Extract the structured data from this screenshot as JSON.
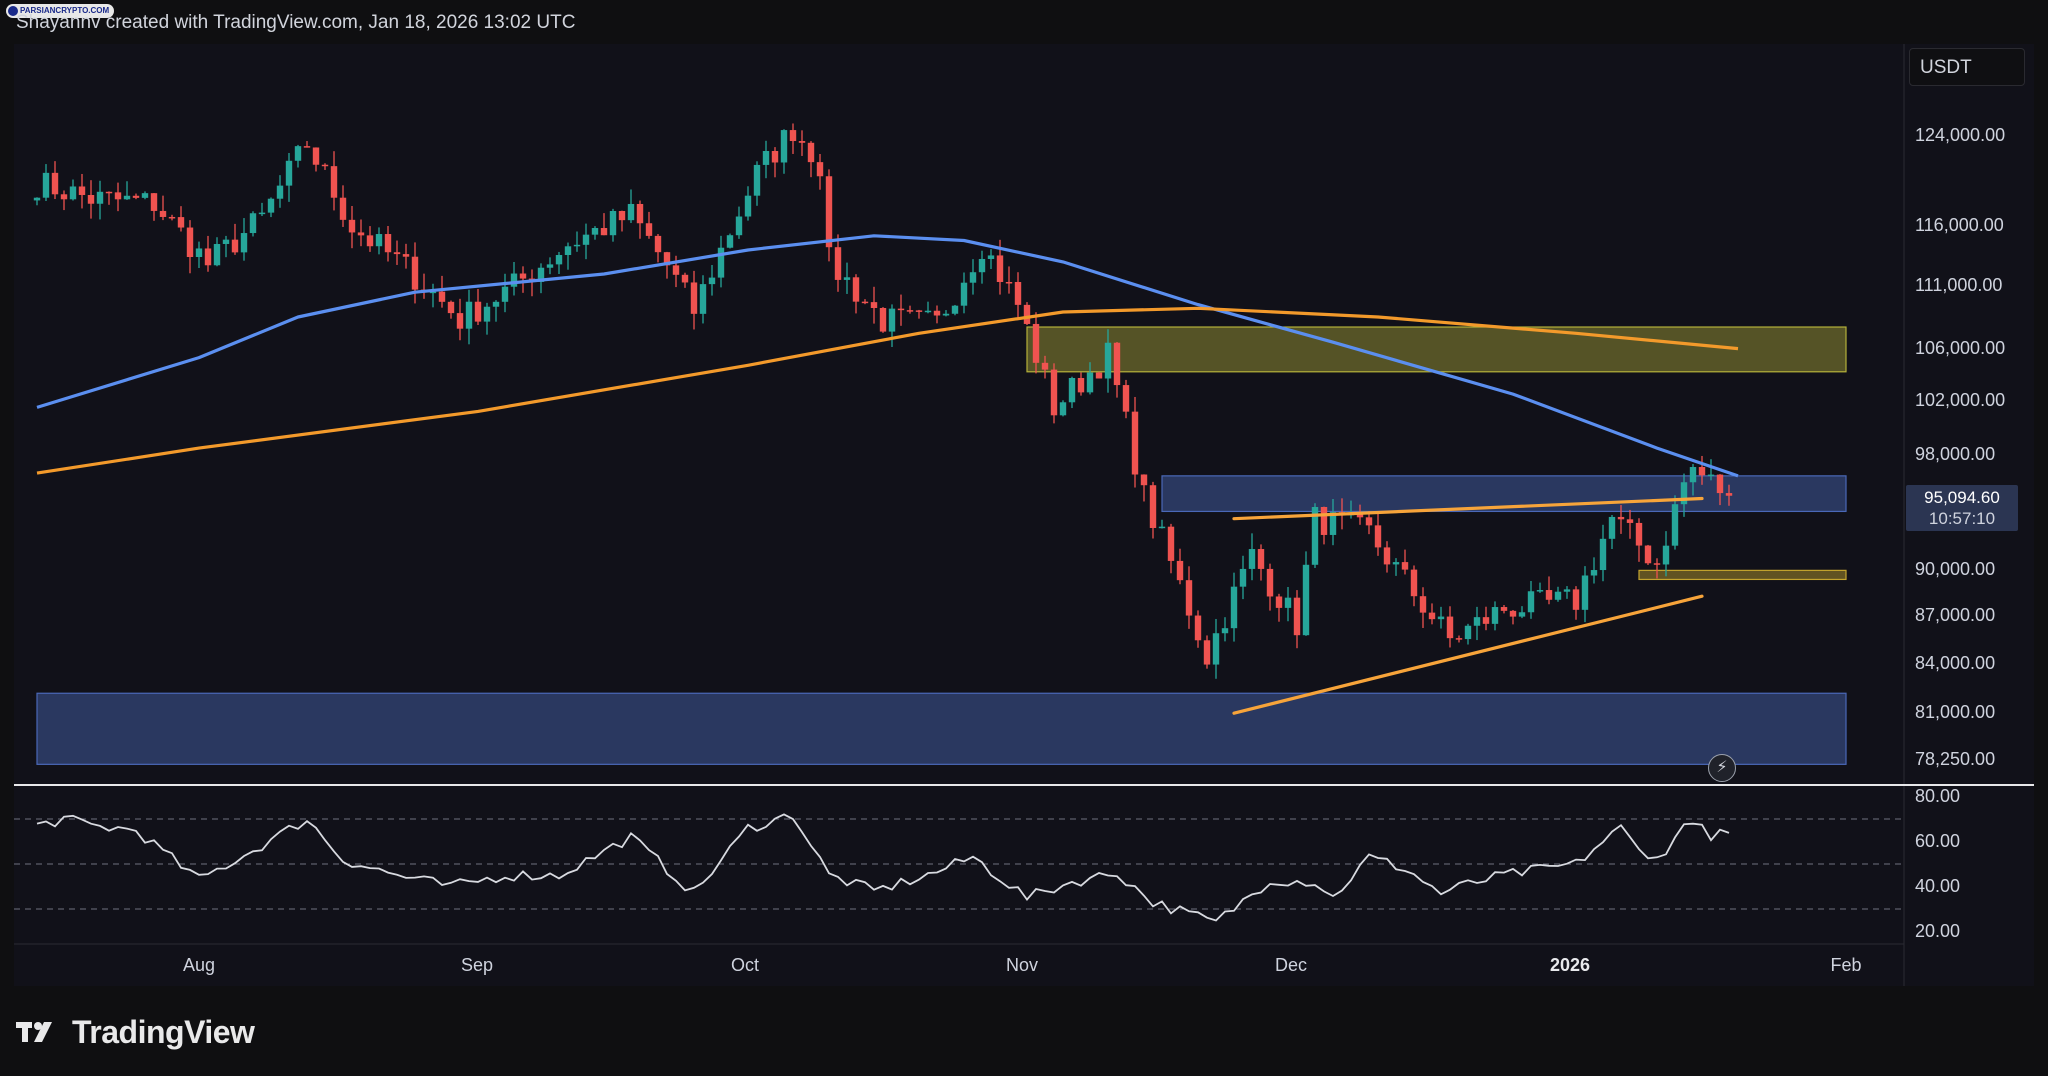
{
  "header": {
    "logo_text": "PARSIANCRYPTO.COM",
    "caption": "Shayannv created with TradingView.com, Jan 18, 2026 13:02 UTC"
  },
  "currency": "USDT",
  "price_tag": {
    "price": "95,094.60",
    "countdown": "10:57:10"
  },
  "footer": {
    "brand": "TradingView"
  },
  "chart_data": [
    {
      "type": "candlestick",
      "title": "",
      "x_labels": [
        "Aug",
        "Sep",
        "Oct",
        "Nov",
        "Dec",
        "2026",
        "Feb"
      ],
      "y_labels": [
        "124,000.00",
        "116,000.00",
        "111,000.00",
        "106,000.00",
        "102,000.00",
        "98,000.00",
        "90,000.00",
        "87,000.00",
        "84,000.00",
        "81,000.00",
        "78,250.00"
      ],
      "y_scale": "log",
      "ylim": [
        76500,
        130000
      ],
      "last_price": 95094.6,
      "close_path": [
        {
          "date": "2025-07-14",
          "close": 119800
        },
        {
          "date": "2025-07-20",
          "close": 118400
        },
        {
          "date": "2025-07-27",
          "close": 118000
        },
        {
          "date": "2025-08-02",
          "close": 112800
        },
        {
          "date": "2025-08-08",
          "close": 116700
        },
        {
          "date": "2025-08-13",
          "close": 123300
        },
        {
          "date": "2025-08-18",
          "close": 116000
        },
        {
          "date": "2025-08-24",
          "close": 112500
        },
        {
          "date": "2025-08-30",
          "close": 108300
        },
        {
          "date": "2025-09-05",
          "close": 111000
        },
        {
          "date": "2025-09-11",
          "close": 114500
        },
        {
          "date": "2025-09-18",
          "close": 117000
        },
        {
          "date": "2025-09-22",
          "close": 112700
        },
        {
          "date": "2025-09-25",
          "close": 109000
        },
        {
          "date": "2025-10-02",
          "close": 120600
        },
        {
          "date": "2025-10-06",
          "close": 124700
        },
        {
          "date": "2025-10-09",
          "close": 121500
        },
        {
          "date": "2025-10-10",
          "close": 113000
        },
        {
          "date": "2025-10-16",
          "close": 108200
        },
        {
          "date": "2025-10-22",
          "close": 108000
        },
        {
          "date": "2025-10-27",
          "close": 114500
        },
        {
          "date": "2025-10-31",
          "close": 109500
        },
        {
          "date": "2025-11-04",
          "close": 101500
        },
        {
          "date": "2025-11-10",
          "close": 105500
        },
        {
          "date": "2025-11-14",
          "close": 95000
        },
        {
          "date": "2025-11-21",
          "close": 84500
        },
        {
          "date": "2025-11-26",
          "close": 91000
        },
        {
          "date": "2025-12-01",
          "close": 86500
        },
        {
          "date": "2025-12-03",
          "close": 93500
        },
        {
          "date": "2025-12-09",
          "close": 92500
        },
        {
          "date": "2025-12-14",
          "close": 88500
        },
        {
          "date": "2025-12-18",
          "close": 85500
        },
        {
          "date": "2025-12-24",
          "close": 87500
        },
        {
          "date": "2026-01-01",
          "close": 88000
        },
        {
          "date": "2026-01-05",
          "close": 93500
        },
        {
          "date": "2026-01-10",
          "close": 90500
        },
        {
          "date": "2026-01-13",
          "close": 96000
        },
        {
          "date": "2026-01-14",
          "close": 97000
        },
        {
          "date": "2026-01-18",
          "close": 95094.6
        }
      ],
      "series": [
        {
          "name": "",
          "kind": "moving-average",
          "color": "#5b8ff0",
          "points": [
            {
              "date": "2025-07-14",
              "value": 101500
            },
            {
              "date": "2025-08-01",
              "value": 105300
            },
            {
              "date": "2025-08-12",
              "value": 108500
            },
            {
              "date": "2025-08-25",
              "value": 110500
            },
            {
              "date": "2025-09-15",
              "value": 112000
            },
            {
              "date": "2025-10-01",
              "value": 114000
            },
            {
              "date": "2025-10-15",
              "value": 115200
            },
            {
              "date": "2025-10-25",
              "value": 114800
            },
            {
              "date": "2025-11-05",
              "value": 113000
            },
            {
              "date": "2025-11-20",
              "value": 109500
            },
            {
              "date": "2025-12-05",
              "value": 106500
            },
            {
              "date": "2025-12-25",
              "value": 102500
            },
            {
              "date": "2026-01-10",
              "value": 98500
            },
            {
              "date": "2026-01-19",
              "value": 96500
            }
          ]
        },
        {
          "name": "",
          "kind": "moving-average",
          "color": "#f39a2b",
          "points": [
            {
              "date": "2025-07-14",
              "value": 96700
            },
            {
              "date": "2025-08-01",
              "value": 98500
            },
            {
              "date": "2025-09-01",
              "value": 101200
            },
            {
              "date": "2025-10-01",
              "value": 104700
            },
            {
              "date": "2025-10-20",
              "value": 107200
            },
            {
              "date": "2025-11-05",
              "value": 108900
            },
            {
              "date": "2025-11-20",
              "value": 109200
            },
            {
              "date": "2025-12-10",
              "value": 108500
            },
            {
              "date": "2026-01-01",
              "value": 107200
            },
            {
              "date": "2026-01-19",
              "value": 106000
            }
          ]
        }
      ],
      "zones": [
        {
          "color": "#b5b13a",
          "x_from": "2025-11-01",
          "x_to": "2026-01-31",
          "y_from": 104200,
          "y_to": 107700
        },
        {
          "color": "#4a68b8",
          "x_from": "2025-11-16",
          "x_to": "2026-01-31",
          "y_from": 94000,
          "y_to": 96500
        },
        {
          "color": "#c4a42e",
          "x_from": "2026-01-08",
          "x_to": "2026-01-31",
          "y_from": 89400,
          "y_to": 90000
        },
        {
          "color": "#4a68b8",
          "x_from": "2025-07-14",
          "x_to": "2026-01-31",
          "y_from": 78000,
          "y_to": 82200
        }
      ],
      "trendlines": [
        {
          "color": "#f7a43a",
          "from": {
            "date": "2025-11-24",
            "value": 93500
          },
          "to": {
            "date": "2026-01-15",
            "value": 94900
          }
        },
        {
          "color": "#f7a43a",
          "from": {
            "date": "2025-11-24",
            "value": 81000
          },
          "to": {
            "date": "2026-01-15",
            "value": 88300
          }
        }
      ]
    },
    {
      "type": "line",
      "title": "",
      "y_labels": [
        "80.00",
        "60.00",
        "40.00",
        "20.00"
      ],
      "ylim": [
        18,
        82
      ],
      "reference_lines": [
        70,
        50,
        30
      ],
      "series": [
        {
          "name": "",
          "color": "#d8dae0",
          "points": [
            {
              "date": "2025-07-14",
              "value": 67
            },
            {
              "date": "2025-07-17",
              "value": 70
            },
            {
              "date": "2025-07-20",
              "value": 67
            },
            {
              "date": "2025-07-25",
              "value": 65
            },
            {
              "date": "2025-08-01",
              "value": 43
            },
            {
              "date": "2025-08-07",
              "value": 56
            },
            {
              "date": "2025-08-13",
              "value": 70
            },
            {
              "date": "2025-08-17",
              "value": 52
            },
            {
              "date": "2025-08-23",
              "value": 45
            },
            {
              "date": "2025-08-29",
              "value": 40
            },
            {
              "date": "2025-09-04",
              "value": 45
            },
            {
              "date": "2025-09-10",
              "value": 45
            },
            {
              "date": "2025-09-18",
              "value": 62
            },
            {
              "date": "2025-09-25",
              "value": 37
            },
            {
              "date": "2025-10-01",
              "value": 66
            },
            {
              "date": "2025-10-06",
              "value": 72
            },
            {
              "date": "2025-10-10",
              "value": 45
            },
            {
              "date": "2025-10-15",
              "value": 38
            },
            {
              "date": "2025-10-21",
              "value": 45
            },
            {
              "date": "2025-10-26",
              "value": 53
            },
            {
              "date": "2025-11-01",
              "value": 35
            },
            {
              "date": "2025-11-06",
              "value": 42
            },
            {
              "date": "2025-11-11",
              "value": 46
            },
            {
              "date": "2025-11-15",
              "value": 33
            },
            {
              "date": "2025-11-22",
              "value": 24
            },
            {
              "date": "2025-11-28",
              "value": 43
            },
            {
              "date": "2025-12-03",
              "value": 42
            },
            {
              "date": "2025-12-05",
              "value": 35
            },
            {
              "date": "2025-12-09",
              "value": 53
            },
            {
              "date": "2025-12-13",
              "value": 48
            },
            {
              "date": "2025-12-17",
              "value": 37
            },
            {
              "date": "2025-12-20",
              "value": 41
            },
            {
              "date": "2025-12-24",
              "value": 45
            },
            {
              "date": "2026-01-01",
              "value": 50
            },
            {
              "date": "2026-01-04",
              "value": 60
            },
            {
              "date": "2026-01-06",
              "value": 66
            },
            {
              "date": "2026-01-08",
              "value": 56
            },
            {
              "date": "2026-01-11",
              "value": 53
            },
            {
              "date": "2026-01-13",
              "value": 70
            },
            {
              "date": "2026-01-16",
              "value": 63
            },
            {
              "date": "2026-01-18",
              "value": 63
            }
          ]
        }
      ]
    }
  ]
}
